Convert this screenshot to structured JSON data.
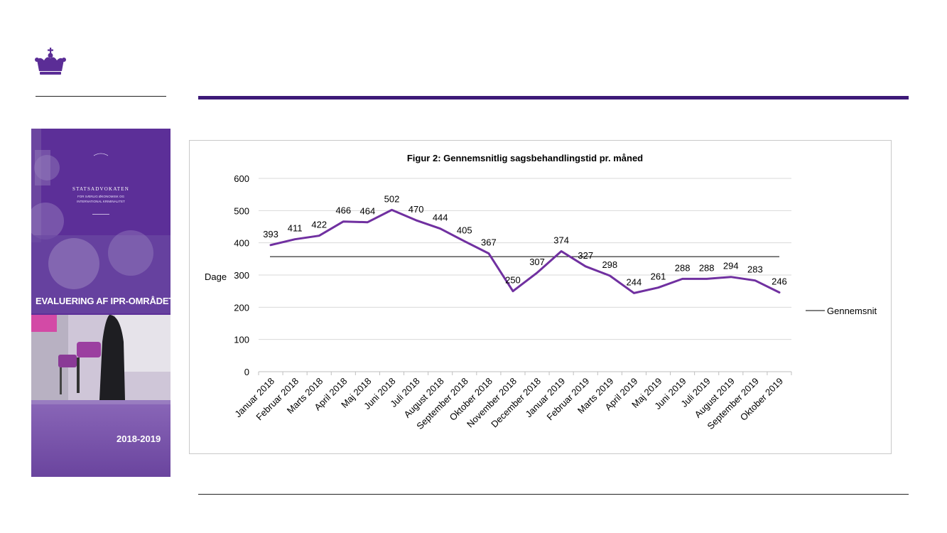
{
  "colors": {
    "accent": "#5b2d96",
    "line": "#7030a0",
    "cover_bg": "#5c2f98"
  },
  "cover": {
    "brand": "STATSADVOKATEN",
    "subtitle_1": "FOR SÆRLIG ØKONOMISK OG",
    "subtitle_2": "INTERNATIONAL KRIMINALITET",
    "title": "EVALUERING AF IPR-OMRÅDET",
    "years": "2018-2019"
  },
  "chart_data": {
    "type": "line",
    "title": "Figur 2: Gennemsnitlig sagsbehandlingstid pr. måned",
    "ylabel": "Dage",
    "xlabel": "",
    "ylim": [
      0,
      600
    ],
    "yticks": [
      0,
      100,
      200,
      300,
      400,
      500,
      600
    ],
    "grid": true,
    "legend_position": "right",
    "categories": [
      "Januar 2018",
      "Februar 2018",
      "Marts 2018",
      "April 2018",
      "Maj 2018",
      "Juni 2018",
      "Juli 2018",
      "August 2018",
      "September 2018",
      "Oktober 2018",
      "November 2018",
      "December 2018",
      "Januar 2019",
      "Februar 2019",
      "Marts 2019",
      "April 2019",
      "Maj 2019",
      "Juni 2019",
      "Juli 2019",
      "August 2019",
      "September 2019",
      "Oktober 2019"
    ],
    "series": [
      {
        "values": [
          393,
          411,
          422,
          466,
          464,
          502,
          470,
          444,
          405,
          367,
          250,
          307,
          374,
          327,
          298,
          244,
          261,
          288,
          288,
          294,
          283,
          246
        ]
      },
      {
        "name": "Gennemsnit",
        "constant": 357
      }
    ]
  }
}
